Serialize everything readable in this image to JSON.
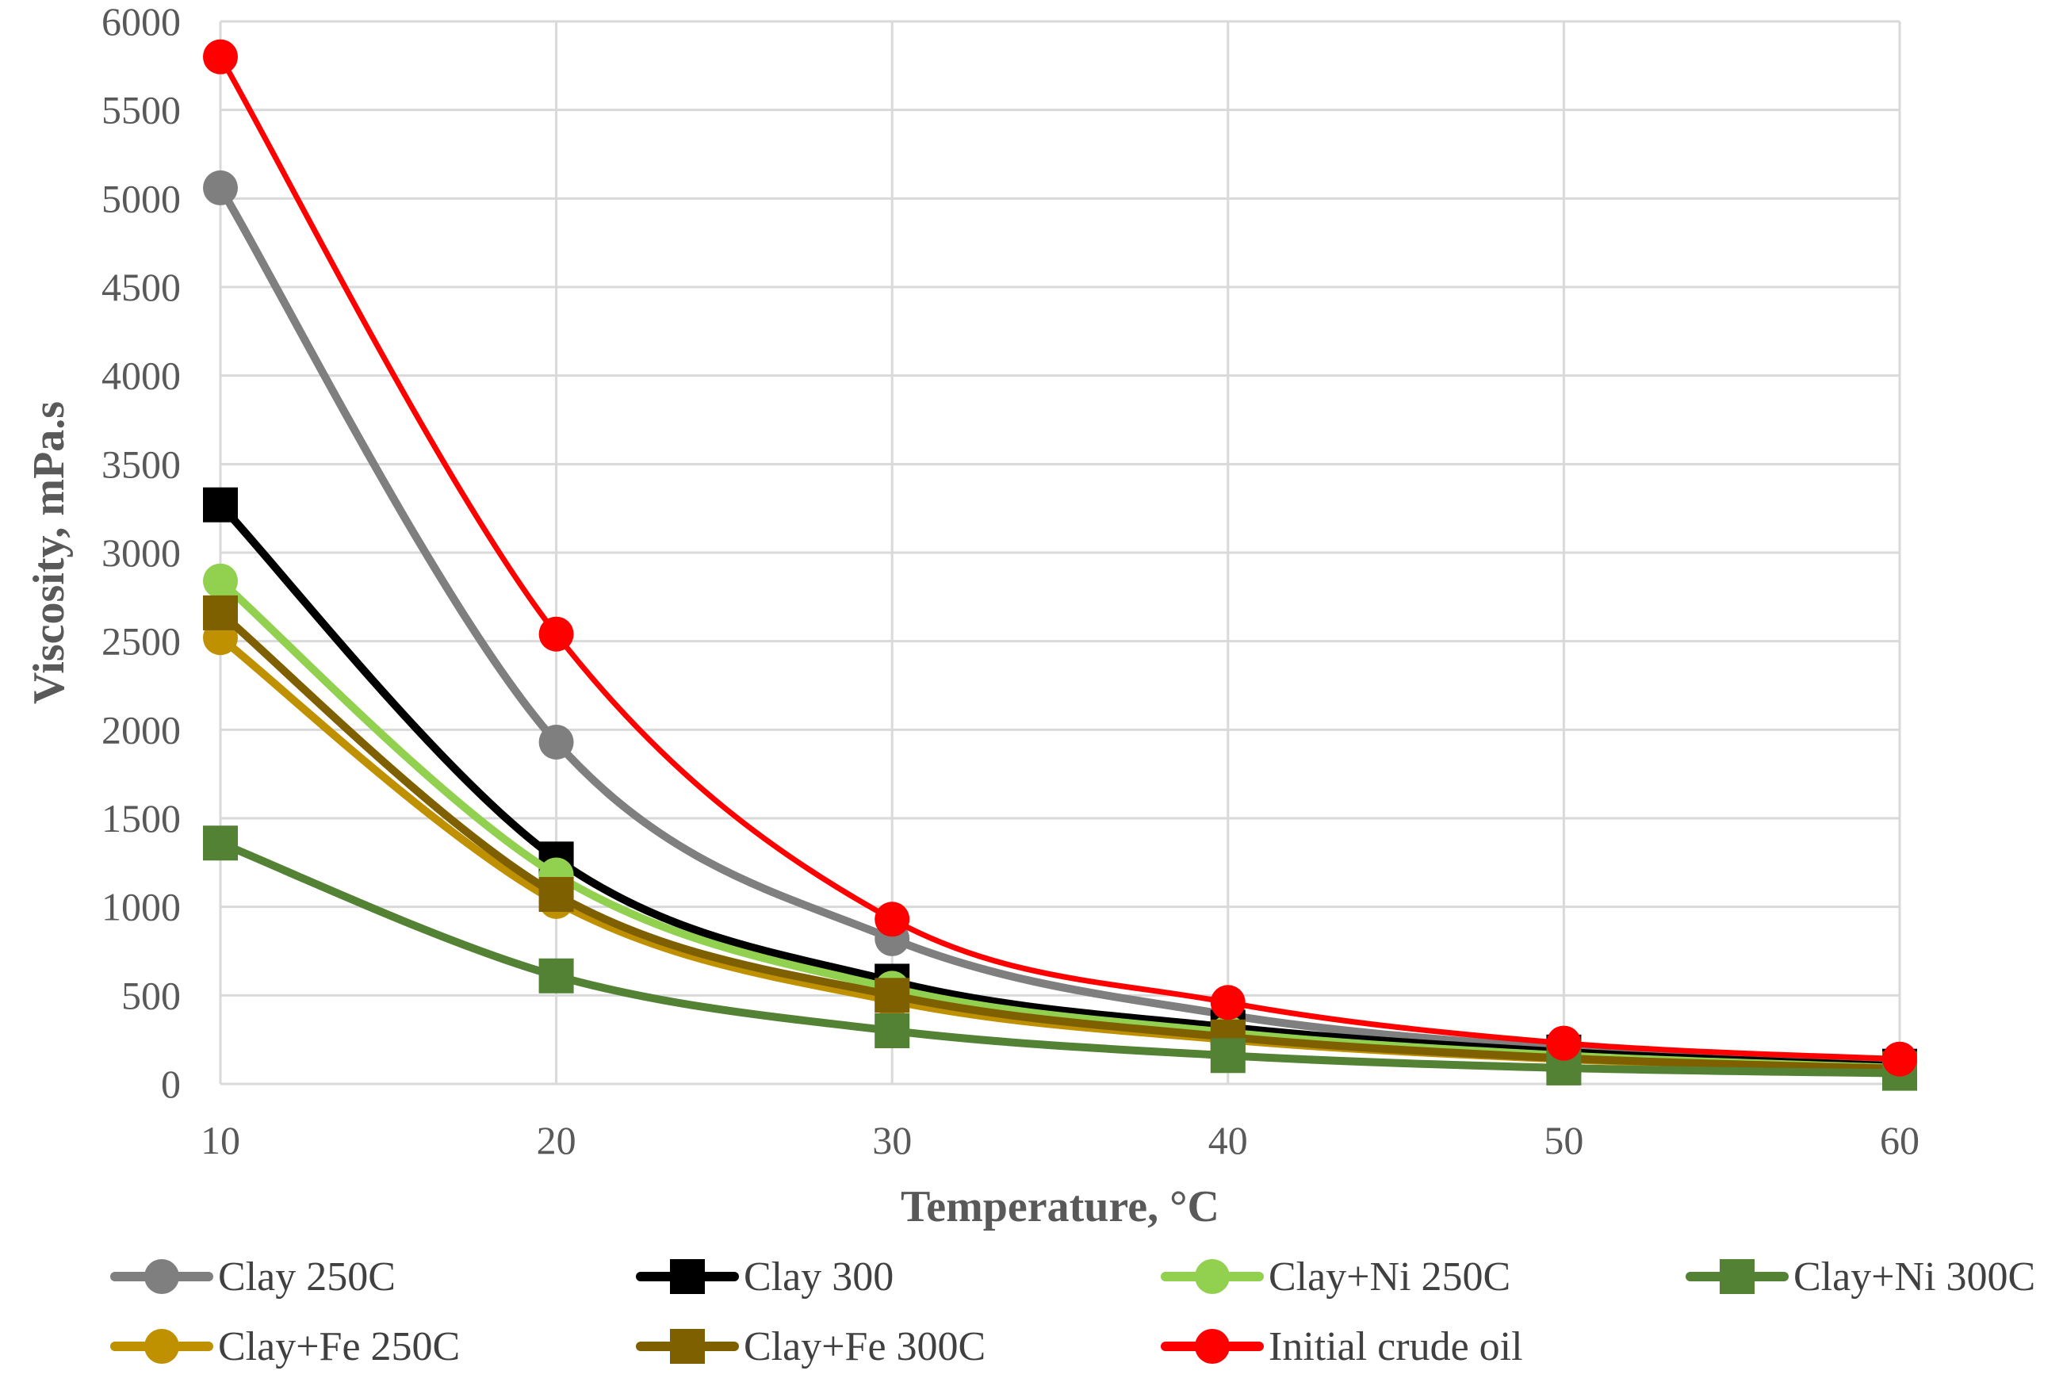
{
  "chart_data": {
    "type": "line",
    "title": "",
    "xlabel": "Temperature, °C",
    "ylabel": "Viscosity, mPa.s",
    "x": [
      10,
      20,
      30,
      40,
      50,
      60
    ],
    "xlim": [
      10,
      60
    ],
    "ylim": [
      0,
      6000
    ],
    "xticks": [
      "10",
      "20",
      "30",
      "40",
      "50",
      "60"
    ],
    "yticks": [
      "0",
      "500",
      "1000",
      "1500",
      "2000",
      "2500",
      "3000",
      "3500",
      "4000",
      "4500",
      "5000",
      "5500",
      "6000"
    ],
    "grid": true,
    "legend_position": "bottom",
    "series": [
      {
        "name": "Clay 250C",
        "color": "#7f7f7f",
        "marker": "circle",
        "values": [
          5060,
          1930,
          820,
          390,
          200,
          110
        ]
      },
      {
        "name": "Clay 300",
        "color": "#000000",
        "marker": "square",
        "values": [
          3270,
          1270,
          580,
          320,
          180,
          100
        ]
      },
      {
        "name": "Clay+Ni 250C",
        "color": "#92d050",
        "marker": "circle",
        "values": [
          2840,
          1180,
          540,
          290,
          160,
          90
        ]
      },
      {
        "name": "Clay+Ni 300C",
        "color": "#548235",
        "marker": "square",
        "values": [
          1360,
          610,
          300,
          160,
          90,
          60
        ]
      },
      {
        "name": "Clay+Fe 250C",
        "color": "#bf9000",
        "marker": "circle",
        "values": [
          2520,
          1030,
          470,
          250,
          140,
          80
        ]
      },
      {
        "name": "Clay+Fe 300C",
        "color": "#7f6000",
        "marker": "square",
        "values": [
          2660,
          1070,
          500,
          265,
          145,
          85
        ]
      },
      {
        "name": "Initial crude oil",
        "color": "#ff0000",
        "marker": "circle",
        "values": [
          5800,
          2540,
          930,
          460,
          230,
          140
        ]
      }
    ]
  }
}
